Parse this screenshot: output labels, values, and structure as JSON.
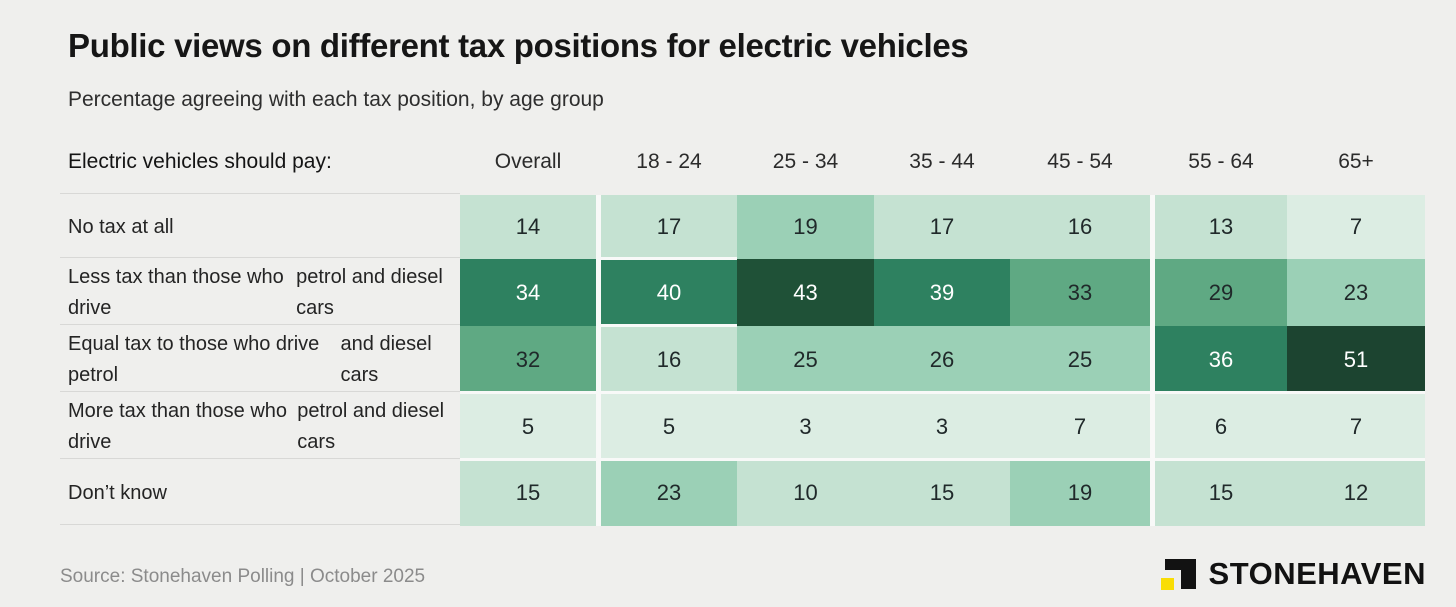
{
  "header": {
    "title": "Public views on different tax positions for electric vehicles",
    "subtitle": "Percentage agreeing with each tax position, by age group"
  },
  "chart_data": {
    "type": "heatmap",
    "unit": "percent agreeing",
    "row_header_label": "Electric vehicles should pay:",
    "columns": [
      "Overall",
      "18 - 24",
      "25 - 34",
      "35 - 44",
      "45 - 54",
      "55 - 64",
      "65+"
    ],
    "rows": [
      {
        "label_lines": [
          "No tax at all"
        ],
        "values": [
          14,
          17,
          19,
          17,
          16,
          13,
          7
        ]
      },
      {
        "label_lines": [
          "Less tax than those who drive",
          "petrol and diesel cars"
        ],
        "values": [
          34,
          40,
          43,
          39,
          33,
          29,
          23
        ]
      },
      {
        "label_lines": [
          "Equal tax to those who drive petrol",
          "and diesel cars"
        ],
        "values": [
          32,
          16,
          25,
          26,
          25,
          36,
          51
        ]
      },
      {
        "label_lines": [
          "More tax than those who drive",
          "petrol and diesel cars"
        ],
        "values": [
          5,
          5,
          3,
          3,
          7,
          6,
          7
        ]
      },
      {
        "label_lines": [
          "Don’t know"
        ],
        "values": [
          15,
          23,
          10,
          15,
          19,
          15,
          12
        ]
      }
    ],
    "color_scale": [
      {
        "max": 9,
        "bg": "#dcede3",
        "text": "#20292a"
      },
      {
        "max": 18,
        "bg": "#c5e2d2",
        "text": "#20292a"
      },
      {
        "max": 28,
        "bg": "#9bd0b6",
        "text": "#20292a"
      },
      {
        "max": 33,
        "bg": "#5fa983",
        "text": "#20292a"
      },
      {
        "max": 42,
        "bg": "#2e8160",
        "text": "#ffffff"
      },
      {
        "max": 48,
        "bg": "#1f5137",
        "text": "#ffffff"
      },
      {
        "max": 100,
        "bg": "#1c4430",
        "text": "#ffffff"
      }
    ],
    "layout_hints": {
      "group_gaps_after_columns": [
        "Overall",
        "45 - 54"
      ],
      "full_width_row_gaps_above_rows": [
        3,
        4
      ],
      "column_with_all_row_gaps": "18 - 24"
    }
  },
  "footer": {
    "source": "Source: Stonehaven Polling | October 2025",
    "brand_name": "STONEHAVEN",
    "brand_black": "#121212",
    "brand_yellow": "#f9dd05"
  }
}
